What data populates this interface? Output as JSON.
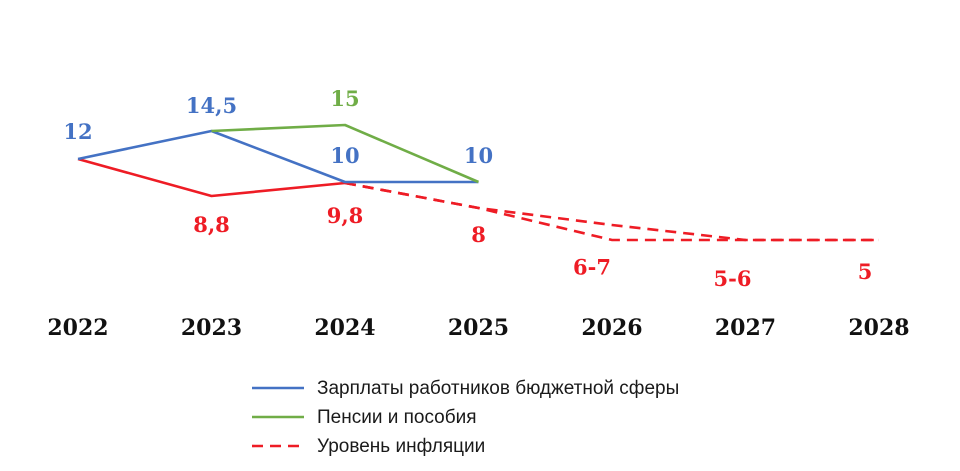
{
  "chart_data": {
    "type": "line",
    "title": "",
    "xlabel": "",
    "ylabel": "",
    "categories": [
      "2022",
      "2023",
      "2024",
      "2025",
      "2026",
      "2027",
      "2028"
    ],
    "series": [
      {
        "name": "Зарплаты работников бюджетной сферы",
        "color": "#4472c4",
        "style": "solid",
        "points": [
          {
            "x": "2022",
            "y": 12,
            "label": "12"
          },
          {
            "x": "2023",
            "y": 14.5,
            "label": "14,5"
          },
          {
            "x": "2024",
            "y": 10,
            "label": "10"
          },
          {
            "x": "2025",
            "y": 10,
            "label": "10"
          }
        ]
      },
      {
        "name": "Пенсии и пособия",
        "color": "#70ad47",
        "style": "solid",
        "points": [
          {
            "x": "2023",
            "y": 14.5,
            "label": ""
          },
          {
            "x": "2024",
            "y": 15,
            "label": "15"
          },
          {
            "x": "2025",
            "y": 10,
            "label": ""
          }
        ]
      },
      {
        "name": "Уровень инфляции",
        "color": "#ee1c25",
        "style": "mixed",
        "points": [
          {
            "x": "2022",
            "y": 12,
            "label": ""
          },
          {
            "x": "2023",
            "y": 8.8,
            "label": "8,8"
          },
          {
            "x": "2024",
            "y": 9.8,
            "label": "9,8"
          }
        ],
        "forecast_band": {
          "upper": [
            {
              "x": "2024",
              "y": 9.8
            },
            {
              "x": "2025",
              "y": 8
            },
            {
              "x": "2026",
              "y": 7
            },
            {
              "x": "2027",
              "y": 6
            },
            {
              "x": "2028",
              "y": 5
            }
          ],
          "lower": [
            {
              "x": "2024",
              "y": 9.8
            },
            {
              "x": "2025",
              "y": 8
            },
            {
              "x": "2026",
              "y": 6
            },
            {
              "x": "2027",
              "y": 5
            },
            {
              "x": "2028",
              "y": 5
            }
          ],
          "labels": [
            {
              "x": "2025",
              "text": "8"
            },
            {
              "x": "2026",
              "text": "6-7"
            },
            {
              "x": "2027",
              "text": "5-6"
            },
            {
              "x": "2028",
              "text": "5"
            }
          ]
        }
      }
    ],
    "legend": {
      "position": "bottom",
      "entries": [
        {
          "label": "Зарплаты работников бюджетной сферы",
          "color": "#4472c4",
          "style": "solid"
        },
        {
          "label": "Пенсии и пособия",
          "color": "#70ad47",
          "style": "solid"
        },
        {
          "label": "Уровень инфляции",
          "color": "#ee1c25",
          "style": "dashed"
        }
      ]
    }
  }
}
